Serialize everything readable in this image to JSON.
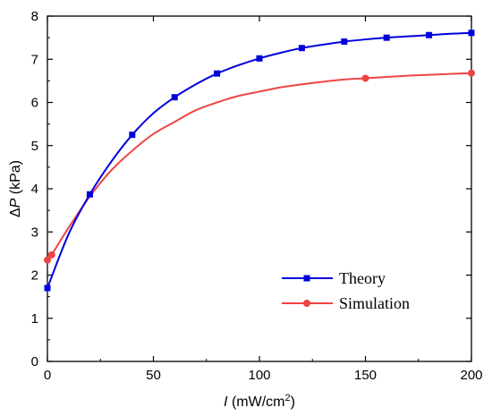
{
  "chart_data": {
    "type": "line",
    "xlabel": {
      "symbol": "I",
      "unit_prefix": " (mW/cm",
      "unit_sup": "2",
      "unit_suffix": ")"
    },
    "ylabel": {
      "prefix": "Δ",
      "symbol": "P",
      "unit": " (kPa)"
    },
    "xlim": [
      0,
      200
    ],
    "ylim": [
      0,
      8
    ],
    "xticks": [
      0,
      50,
      100,
      150,
      200
    ],
    "yticks": [
      0,
      1,
      2,
      3,
      4,
      5,
      6,
      7,
      8
    ],
    "xtick_labels": [
      "0",
      "50",
      "100",
      "150",
      "200"
    ],
    "ytick_labels": [
      "0",
      "1",
      "2",
      "3",
      "4",
      "5",
      "6",
      "7",
      "8"
    ],
    "legend_position": "bottom-right",
    "grid": false,
    "series": [
      {
        "name": "Theory",
        "color": "#0000dd",
        "marker": "square",
        "x": [
          0,
          20,
          40,
          60,
          80,
          100,
          120,
          140,
          160,
          180,
          200
        ],
        "y": [
          1.7,
          3.87,
          5.25,
          6.12,
          6.67,
          7.02,
          7.26,
          7.41,
          7.5,
          7.56,
          7.61
        ],
        "curve_x": [
          0,
          10,
          20,
          30,
          40,
          50,
          60,
          70,
          80,
          90,
          100,
          110,
          120,
          130,
          140,
          150,
          160,
          170,
          180,
          190,
          200
        ],
        "curve_y": [
          1.7,
          2.95,
          3.87,
          4.62,
          5.25,
          5.75,
          6.12,
          6.42,
          6.67,
          6.86,
          7.02,
          7.15,
          7.26,
          7.34,
          7.41,
          7.46,
          7.5,
          7.53,
          7.56,
          7.59,
          7.61
        ]
      },
      {
        "name": "Simulation",
        "color": "#ee4444",
        "marker": "circle",
        "x": [
          0,
          2,
          150,
          200
        ],
        "y": [
          2.35,
          2.47,
          6.56,
          6.68
        ],
        "curve_x": [
          0,
          2,
          10,
          20,
          30,
          40,
          50,
          60,
          70,
          80,
          90,
          100,
          110,
          120,
          130,
          140,
          150,
          160,
          170,
          180,
          190,
          200
        ],
        "curve_y": [
          2.35,
          2.47,
          3.1,
          3.82,
          4.42,
          4.88,
          5.27,
          5.55,
          5.82,
          6.0,
          6.15,
          6.25,
          6.35,
          6.42,
          6.48,
          6.53,
          6.56,
          6.59,
          6.62,
          6.64,
          6.66,
          6.68
        ]
      }
    ]
  }
}
